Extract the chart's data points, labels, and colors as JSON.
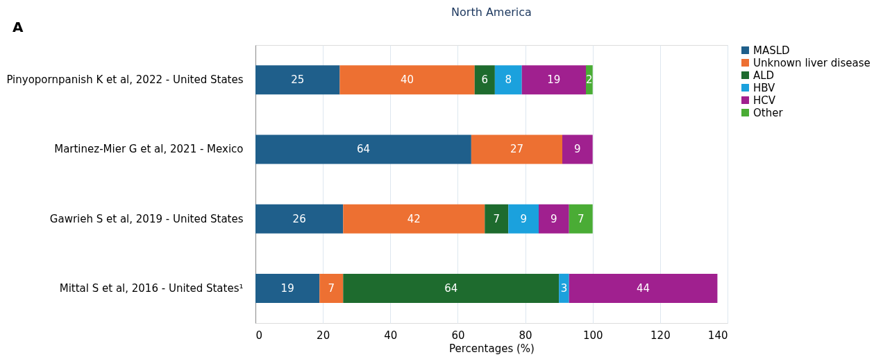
{
  "chart_data": {
    "type": "bar",
    "orientation": "horizontal",
    "stacked": true,
    "title": "North America",
    "xlabel": "Percentages (%)",
    "categories": [
      "Pinyopornpanish K et al, 2022 - United States",
      "Martinez-Mier G et al, 2021 - Mexico",
      "Gawrieh S et al, 2019 - United States",
      "Mittal S et al, 2016 - United States¹"
    ],
    "series": [
      {
        "name": "MASLD",
        "color": "#1f5f8b",
        "values": [
          25,
          64,
          26,
          19
        ]
      },
      {
        "name": "Unknown liver disease",
        "color": "#ed7032",
        "values": [
          40,
          27,
          42,
          7
        ]
      },
      {
        "name": "ALD",
        "color": "#1e6b2e",
        "values": [
          6,
          null,
          7,
          64
        ]
      },
      {
        "name": "HBV",
        "color": "#1ba1dd",
        "values": [
          8,
          null,
          9,
          3
        ]
      },
      {
        "name": "HCV",
        "color": "#a0208f",
        "values": [
          19,
          9,
          9,
          44
        ]
      },
      {
        "name": "Other",
        "color": "#4aac35",
        "values": [
          2,
          null,
          7,
          null
        ]
      }
    ],
    "xlim": [
      0,
      140
    ],
    "xticks": [
      0,
      20,
      40,
      60,
      80,
      100,
      120,
      140
    ],
    "grid": "x",
    "legend": "right",
    "data_labels": true,
    "annotations": [
      "A"
    ]
  }
}
